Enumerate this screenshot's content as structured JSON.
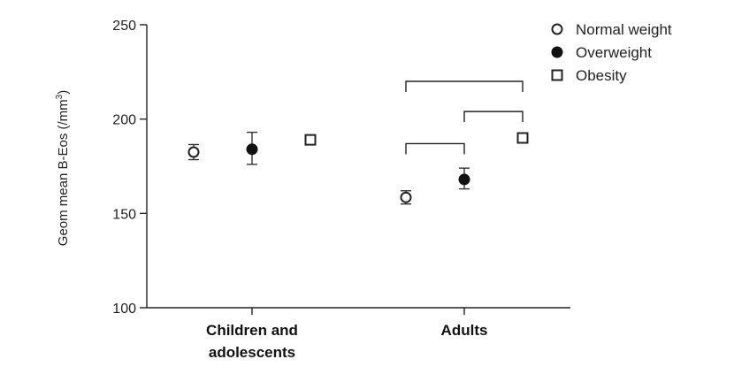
{
  "chart_data": {
    "type": "scatter",
    "ylabel_main": "Geom mean B-Eos (/mm",
    "ylabel_sup": "3",
    "ylabel_tail": ")",
    "ylim": [
      100,
      250
    ],
    "yticks": [
      100,
      150,
      200,
      250
    ],
    "ytick_labels": [
      "100",
      "150",
      "200",
      "250"
    ],
    "categories": [
      {
        "lines": [
          "Children and",
          "adolescents"
        ]
      },
      {
        "lines": [
          "Adults"
        ]
      }
    ],
    "series": [
      {
        "name": "Normal weight",
        "marker": "open-circle",
        "color": "#222222",
        "points": [
          {
            "category": 0,
            "value": 182.5,
            "err_low": 178.5,
            "err_high": 186.5
          },
          {
            "category": 1,
            "value": 158.5,
            "err_low": 155,
            "err_high": 162
          }
        ]
      },
      {
        "name": "Overweight",
        "marker": "filled-circle",
        "color": "#111111",
        "points": [
          {
            "category": 0,
            "value": 184,
            "err_low": 176,
            "err_high": 193
          },
          {
            "category": 1,
            "value": 168,
            "err_low": 163,
            "err_high": 174
          }
        ]
      },
      {
        "name": "Obesity",
        "marker": "open-square",
        "color": "#222222",
        "points": [
          {
            "category": 0,
            "value": 189,
            "err_low": 187,
            "err_high": 191
          },
          {
            "category": 1,
            "value": 190,
            "err_low": 187.5,
            "err_high": 192.5
          }
        ]
      }
    ],
    "significance_brackets": [
      {
        "category": 1,
        "from_series": 0,
        "to_series": 2,
        "level": 220
      },
      {
        "category": 1,
        "from_series": 1,
        "to_series": 2,
        "level": 204
      },
      {
        "category": 1,
        "from_series": 0,
        "to_series": 1,
        "level": 187
      }
    ],
    "legend_position": "top-right",
    "grid": false
  }
}
